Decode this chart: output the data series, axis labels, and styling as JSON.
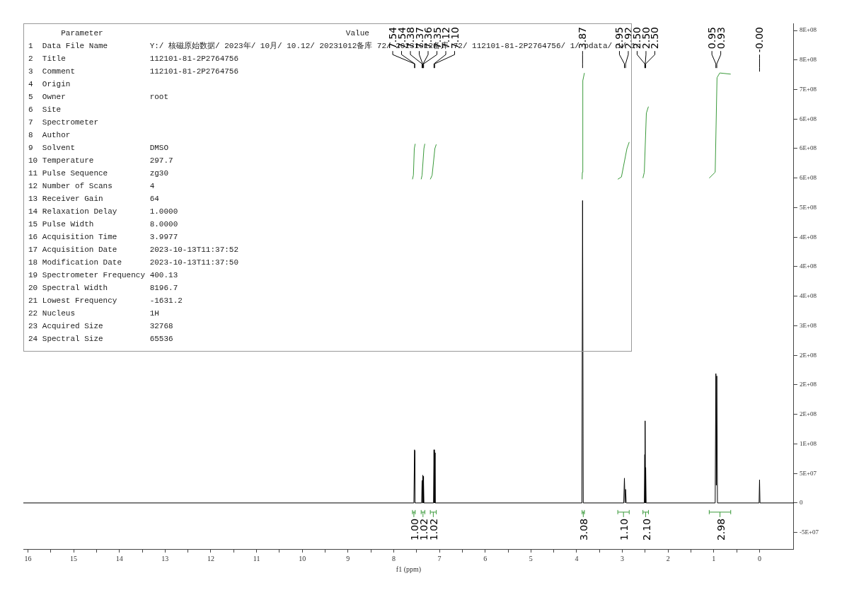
{
  "chart_data": {
    "type": "line",
    "xlabel": "f1 (ppm)",
    "xlim": [
      16.1,
      -0.75
    ],
    "ylim": [
      -78000000,
      812000000
    ],
    "xticks": [
      0,
      {
        "value": 0.5,
        "label": null
      },
      1,
      {
        "value": 1.5,
        "label": null
      },
      2,
      {
        "value": 2.5,
        "label": null
      },
      3,
      {
        "value": 3.5,
        "label": null
      },
      4,
      {
        "value": 4.5,
        "label": null
      },
      5,
      {
        "value": 5.5,
        "label": null
      },
      6,
      {
        "value": 6.5,
        "label": null
      },
      7,
      {
        "value": 7.5,
        "label": null
      },
      8,
      {
        "value": 8.5,
        "label": null
      },
      9,
      {
        "value": 9.5,
        "label": null
      },
      10,
      {
        "value": 10.5,
        "label": null
      },
      11,
      {
        "value": 11.5,
        "label": null
      },
      12,
      {
        "value": 12.5,
        "label": null
      },
      13,
      {
        "value": 13.5,
        "label": null
      },
      14,
      {
        "value": 14.5,
        "label": null
      },
      15,
      {
        "value": 15.5,
        "label": null
      },
      16
    ],
    "yticks": [
      {
        "value": -50000000,
        "label": "-5E+07"
      },
      0,
      {
        "value": 50000000,
        "label": "5E+07"
      },
      {
        "value": 100000000,
        "label": "1E+08"
      },
      {
        "value": 150000000,
        "label": "2E+08"
      },
      {
        "value": 200000000,
        "label": "2E+08"
      },
      {
        "value": 250000000,
        "label": "2E+08"
      },
      {
        "value": 300000000,
        "label": "3E+08"
      },
      {
        "value": 350000000,
        "label": "4E+08"
      },
      {
        "value": 400000000,
        "label": "4E+08"
      },
      {
        "value": 450000000,
        "label": "4E+08"
      },
      {
        "value": 500000000,
        "label": "5E+08"
      },
      {
        "value": 550000000,
        "label": "6E+08"
      },
      {
        "value": 600000000,
        "label": "6E+08"
      },
      {
        "value": 650000000,
        "label": "6E+08"
      },
      {
        "value": 700000000,
        "label": "7E+08"
      },
      {
        "value": 750000000,
        "label": "8E+08"
      },
      {
        "value": 800000000,
        "label": "8E+08"
      }
    ],
    "grid": false,
    "legend": false,
    "marker": "none",
    "line_style": "solid",
    "series": [
      {
        "color": "#000000",
        "x": [
          16.1,
          7.56,
          7.545,
          7.54,
          7.535,
          7.39,
          7.38,
          7.372,
          7.368,
          7.36,
          7.357,
          7.35,
          7.347,
          7.34,
          7.13,
          7.12,
          7.11,
          7.105,
          7.095,
          3.885,
          3.87,
          3.855,
          2.97,
          2.955,
          2.94,
          2.93,
          2.915,
          2.52,
          2.51,
          2.505,
          2.5,
          2.495,
          2.49,
          2.48,
          0.97,
          0.955,
          0.945,
          0.935,
          0.92,
          0.01,
          0,
          -0.01,
          -0.75
        ],
        "values": [
          0,
          0,
          90000000,
          88000000,
          0,
          0,
          38000000,
          0,
          47000000,
          0,
          45000000,
          0,
          36000000,
          0,
          0,
          90000000,
          0,
          85000000,
          0,
          0,
          512000000,
          0,
          0,
          42000000,
          0,
          23000000,
          0,
          0,
          82000000,
          0,
          139000000,
          0,
          60000000,
          0,
          0,
          219000000,
          30000000,
          215000000,
          0,
          0,
          39000000,
          0,
          0
        ]
      },
      {
        "color": "#3a9a3a",
        "x": [
          7.59,
          7.57,
          7.55,
          7.53
        ],
        "values": [
          548000000,
          555000000,
          600000000,
          608000000
        ]
      },
      {
        "color": "#3a9a3a",
        "x": [
          7.4,
          7.38,
          7.34,
          7.32
        ],
        "values": [
          548000000,
          555000000,
          600000000,
          608000000
        ]
      },
      {
        "color": "#3a9a3a",
        "x": [
          7.2,
          7.16,
          7.1,
          7.07
        ],
        "values": [
          548000000,
          555000000,
          600000000,
          607000000
        ]
      },
      {
        "color": "#3a9a3a",
        "x": [
          3.88,
          3.875,
          3.865,
          3.83
        ],
        "values": [
          548000000,
          560000000,
          715000000,
          728000000
        ]
      },
      {
        "color": "#3a9a3a",
        "x": [
          3.1,
          3.02,
          2.9,
          2.85
        ],
        "values": [
          548000000,
          552000000,
          600000000,
          611000000
        ]
      },
      {
        "color": "#3a9a3a",
        "x": [
          2.55,
          2.52,
          2.475,
          2.43
        ],
        "values": [
          550000000,
          560000000,
          660000000,
          671000000
        ]
      },
      {
        "color": "#3a9a3a",
        "x": [
          1.1,
          0.97,
          0.93,
          0.87,
          0.63
        ],
        "values": [
          550000000,
          560000000,
          720000000,
          728000000,
          726000000
        ]
      }
    ],
    "annotations": [
      "       Parameter                                                    Value",
      "1  Data File Name         Y:/ 核磁原始数据/ 2023年/ 10月/ 10.12/ 20231012备库 72/ 20231012备库 72/ 112101-81-2P2764756/ 1/ pdata/ 1/ 1r",
      "2  Title                  112101-81-2P2764756",
      "3  Comment                112101-81-2P2764756",
      "4  Origin",
      "5  Owner                  root",
      "6  Site",
      "7  Spectrometer",
      "8  Author",
      "9  Solvent                DMSO",
      "10 Temperature            297.7",
      "11 Pulse Sequence         zg30",
      "12 Number of Scans        4",
      "13 Receiver Gain          64",
      "14 Relaxation Delay       1.0000",
      "15 Pulse Width            8.0000",
      "16 Acquisition Time       3.9977",
      "17 Acquisition Date       2023-10-13T11:37:52",
      "18 Modification Date      2023-10-13T11:37:50",
      "19 Spectrometer Frequency 400.13",
      "20 Spectral Width         8196.7",
      "21 Lowest Frequency       -1631.2",
      "22 Nucleus                1H",
      "23 Acquired Size          32768",
      "24 Spectral Size          65536",
      {
        "text": "7.54",
        "x": 7.545
      },
      {
        "text": "7.54",
        "x": 7.54
      },
      {
        "text": "7.38",
        "x": 7.38
      },
      {
        "text": "7.37",
        "x": 7.368
      },
      {
        "text": "7.36",
        "x": 7.357
      },
      {
        "text": "7.35",
        "x": 7.347
      },
      {
        "text": "7.12",
        "x": 7.12
      },
      {
        "text": "7.10",
        "x": 7.105
      },
      {
        "text": "3.87",
        "x": 3.87
      },
      {
        "text": "2.95",
        "x": 2.955
      },
      {
        "text": "2.92",
        "x": 2.93
      },
      {
        "text": "2.50",
        "x": 2.51
      },
      {
        "text": "2.50",
        "x": 2.5
      },
      {
        "text": "2.50",
        "x": 2.49
      },
      {
        "text": "0.95",
        "x": 0.955
      },
      {
        "text": "0.93",
        "x": 0.935
      },
      {
        "text": "-0.00",
        "x": 0
      },
      "1.00",
      "1.02",
      "1.02",
      "3.08",
      "1.10",
      "2.10",
      "2.98"
    ]
  }
}
